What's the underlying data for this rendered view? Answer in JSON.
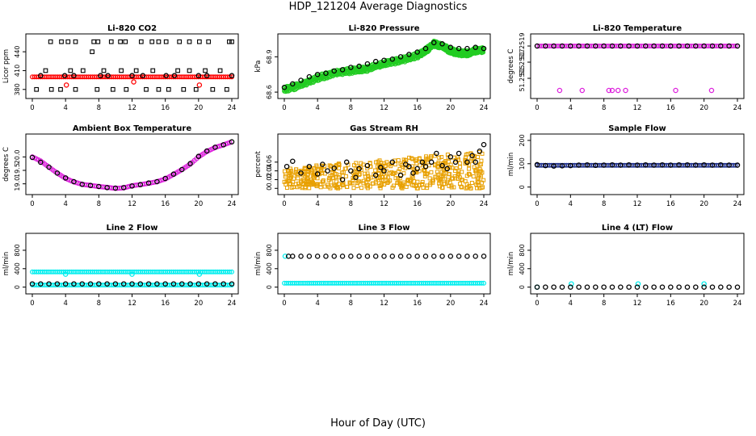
{
  "page": {
    "title": "HDP_121204  Average Diagnostics",
    "xlabel": "Hour of Day (UTC)"
  },
  "chart_data": [
    {
      "type": "scatter",
      "title": "Li-820 CO2",
      "ylabel": "Licor ppm",
      "xlim": [
        0,
        24
      ],
      "xticks": [
        0,
        4,
        8,
        12,
        16,
        20,
        24
      ],
      "ylim": [
        372,
        462
      ],
      "yticks": [
        380,
        410,
        440
      ],
      "grid": false,
      "series": [
        {
          "color": "#ff0000",
          "marker": "line-dense",
          "y": 400
        },
        {
          "color": "#ff0000",
          "marker": "o",
          "x": [
            4.1,
            12.2,
            20.1
          ],
          "y": [
            387,
            392,
            387
          ]
        },
        {
          "color": "#000000",
          "marker": "o",
          "x": [
            1.0,
            3.9,
            5.0,
            8.2,
            9.1,
            12.0,
            13.3,
            16.1,
            17.1,
            20.0,
            21.0,
            24.0
          ],
          "y": [
            402,
            402,
            402,
            402,
            402,
            402,
            402,
            402,
            402,
            402,
            402,
            402
          ]
        },
        {
          "color": "#000000",
          "marker": "square",
          "x": [
            0.5,
            1.6,
            2.3,
            3.4,
            4.6,
            5.2,
            6.1,
            7.2,
            7.8,
            8.6,
            9.7,
            10.7,
            11.3,
            12.5,
            13.7,
            14.5,
            15.2,
            16.4,
            17.5,
            18.2,
            18.9,
            19.7,
            20.8,
            21.7,
            22.6,
            23.4
          ],
          "y": [
            380,
            410,
            380,
            380,
            410,
            380,
            410,
            440,
            380,
            410,
            380,
            410,
            380,
            410,
            380,
            410,
            380,
            380,
            410,
            380,
            410,
            380,
            410,
            380,
            410,
            380
          ]
        },
        {
          "color": "#000000",
          "marker": "square",
          "x": [
            2.2,
            3.5,
            4.3,
            5.2,
            7.4,
            7.9,
            9.5,
            10.6,
            11.2,
            13.1,
            14.4,
            15.2,
            16.1,
            17.7,
            18.9,
            20.1,
            21.2,
            23.7,
            24.0
          ],
          "y": [
            456,
            456,
            456,
            456,
            456,
            456,
            456,
            456,
            456,
            456,
            456,
            456,
            456,
            456,
            456,
            456,
            456,
            456,
            456
          ]
        }
      ]
    },
    {
      "type": "scatter",
      "title": "Li-820 Pressure",
      "ylabel": "kPa",
      "xlim": [
        0,
        24
      ],
      "xticks": [
        0,
        4,
        8,
        12,
        16,
        20,
        24
      ],
      "ylim": [
        68.58,
        69.06
      ],
      "yticks": [
        68.6,
        68.9
      ],
      "grid": false,
      "series": [
        {
          "color": "#22cc22",
          "marker": "band",
          "x": [
            0,
            2,
            4,
            6,
            8,
            10,
            12,
            14,
            16,
            17,
            18,
            19,
            20,
            21,
            22,
            23,
            24
          ],
          "y": [
            68.62,
            68.66,
            68.72,
            68.76,
            68.78,
            68.8,
            68.84,
            68.87,
            68.91,
            68.95,
            69.01,
            68.99,
            68.95,
            68.93,
            68.93,
            68.95,
            68.96
          ]
        },
        {
          "color": "#000000",
          "marker": "o",
          "x": [
            0,
            1,
            2,
            3,
            4,
            5,
            6,
            7,
            8,
            9,
            10,
            11,
            12,
            13,
            14,
            15,
            16,
            17,
            18,
            19,
            20,
            21,
            22,
            23,
            24
          ],
          "y": [
            68.64,
            68.67,
            68.7,
            68.73,
            68.75,
            68.76,
            68.78,
            68.79,
            68.81,
            68.82,
            68.84,
            68.86,
            68.87,
            68.88,
            68.9,
            68.92,
            68.94,
            68.97,
            69.02,
            69.01,
            68.98,
            68.97,
            68.97,
            68.98,
            68.97
          ]
        }
      ]
    },
    {
      "type": "scatter",
      "title": "Li-820 Temperature",
      "ylabel": "degrees C",
      "xlim": [
        0,
        24
      ],
      "xticks": [
        0,
        4,
        8,
        12,
        16,
        20,
        24
      ],
      "ylim": [
        51.2513,
        51.252
      ],
      "yticks": [
        51.2515,
        51.2517,
        51.2519
      ],
      "grid": false,
      "series": [
        {
          "color": "#dd22dd",
          "marker": "line-dense",
          "y": 51.2519
        },
        {
          "color": "#dd22dd",
          "marker": "o",
          "x": [
            2.7,
            5.4,
            8.6,
            9.0,
            9.7,
            10.6,
            16.6,
            20.9
          ],
          "y": [
            51.25135,
            51.25135,
            51.25135,
            51.25135,
            51.25135,
            51.25135,
            51.25135,
            51.25135
          ]
        },
        {
          "color": "#000000",
          "marker": "o",
          "x": [
            0,
            1,
            2,
            3,
            4,
            5,
            6,
            7,
            8,
            9,
            10,
            11,
            12,
            13,
            14,
            15,
            16,
            17,
            18,
            19,
            20,
            21,
            22,
            23,
            24
          ],
          "y": [
            51.2519,
            51.2519,
            51.2519,
            51.2519,
            51.2519,
            51.2519,
            51.2519,
            51.2519,
            51.2519,
            51.2519,
            51.2519,
            51.2519,
            51.2519,
            51.2519,
            51.2519,
            51.2519,
            51.2519,
            51.2519,
            51.2519,
            51.2519,
            51.2519,
            51.2519,
            51.2519,
            51.2519,
            51.2519
          ]
        }
      ]
    },
    {
      "type": "scatter",
      "title": "Ambient Box Temperature",
      "ylabel": "degrees C",
      "xlim": [
        0,
        24
      ],
      "xticks": [
        0,
        4,
        8,
        12,
        16,
        20,
        24
      ],
      "ylim": [
        18.75,
        20.7
      ],
      "yticks": [
        19.0,
        19.5,
        20.0
      ],
      "grid": false,
      "series": [
        {
          "color": "#dd22dd",
          "marker": "curve",
          "x": [
            0,
            1,
            2,
            3,
            4,
            5,
            6,
            7,
            8,
            9,
            10,
            11,
            12,
            13,
            14,
            15,
            16,
            17,
            18,
            19,
            20,
            21,
            22,
            23,
            24
          ],
          "y": [
            20.0,
            19.85,
            19.62,
            19.4,
            19.2,
            19.07,
            18.98,
            18.94,
            18.9,
            18.87,
            18.83,
            18.85,
            18.93,
            18.97,
            19.02,
            19.08,
            19.18,
            19.35,
            19.53,
            19.73,
            20.0,
            20.2,
            20.35,
            20.45,
            20.56
          ]
        },
        {
          "color": "#000000",
          "marker": "o",
          "x": [
            0,
            1,
            2,
            3,
            4,
            5,
            6,
            7,
            8,
            9,
            10,
            11,
            12,
            13,
            14,
            15,
            16,
            17,
            18,
            19,
            20,
            21,
            22,
            23,
            24
          ],
          "y": [
            19.98,
            19.8,
            19.62,
            19.4,
            19.22,
            19.08,
            18.98,
            18.94,
            18.9,
            18.86,
            18.84,
            18.86,
            18.92,
            18.97,
            19.03,
            19.08,
            19.2,
            19.36,
            19.53,
            19.75,
            20.02,
            20.22,
            20.36,
            20.45,
            20.56
          ]
        }
      ]
    },
    {
      "type": "scatter",
      "title": "Gas Stream RH",
      "ylabel": "percent",
      "xlim": [
        0,
        24
      ],
      "xticks": [
        0,
        4,
        8,
        12,
        16,
        20,
        24
      ],
      "ylim": [
        -0.005,
        0.115
      ],
      "yticks": [
        0.0,
        0.02,
        0.04,
        0.06
      ],
      "grid": false,
      "series": [
        {
          "color": "#e8a000",
          "marker": "cloud",
          "y_low": 0.0,
          "y_high": 0.085
        },
        {
          "color": "#000000",
          "marker": "o",
          "x": [
            0.3,
            1.0,
            2.0,
            3.0,
            4.0,
            4.6,
            5.2,
            6.0,
            7.0,
            7.5,
            8.0,
            8.6,
            9.0,
            10.0,
            11.0,
            11.6,
            12.0,
            13.0,
            14.0,
            14.6,
            15.0,
            15.5,
            16.0,
            16.6,
            17.0,
            17.7,
            18.3,
            19.0,
            19.6,
            20.0,
            20.6,
            21.0,
            22.0,
            22.6,
            23.0,
            23.5,
            24.0
          ],
          "y": [
            0.05,
            0.062,
            0.035,
            0.05,
            0.033,
            0.055,
            0.04,
            0.046,
            0.02,
            0.06,
            0.04,
            0.025,
            0.045,
            0.052,
            0.03,
            0.048,
            0.04,
            0.06,
            0.03,
            0.055,
            0.05,
            0.035,
            0.045,
            0.06,
            0.05,
            0.06,
            0.08,
            0.052,
            0.045,
            0.072,
            0.06,
            0.08,
            0.06,
            0.075,
            0.06,
            0.085,
            0.1
          ]
        }
      ]
    },
    {
      "type": "scatter",
      "title": "Sample Flow",
      "ylabel": "ml/min",
      "xlim": [
        0,
        24
      ],
      "xticks": [
        0,
        4,
        8,
        12,
        16,
        20,
        24
      ],
      "ylim": [
        -15,
        210
      ],
      "yticks": [
        0,
        100,
        200
      ],
      "grid": false,
      "series": [
        {
          "color": "#22338f",
          "marker": "line-dense",
          "y": 93
        },
        {
          "color": "#000000",
          "marker": "o",
          "x": [
            0,
            1,
            2,
            3,
            4,
            5,
            6,
            7,
            8,
            9,
            10,
            11,
            12,
            13,
            14,
            15,
            16,
            17,
            18,
            19,
            20,
            21,
            22,
            23,
            24
          ],
          "y": [
            96,
            92,
            90,
            91,
            92,
            94,
            95,
            93,
            94,
            95,
            94,
            95,
            94,
            95,
            94,
            95,
            94,
            95,
            95,
            94,
            95,
            94,
            95,
            94,
            94
          ]
        }
      ]
    },
    {
      "type": "scatter",
      "title": "Line 2 Flow",
      "ylabel": "ml/min",
      "xlim": [
        0,
        24
      ],
      "xticks": [
        0,
        4,
        8,
        12,
        16,
        20,
        24
      ],
      "ylim": [
        -60,
        1080
      ],
      "yticks": [
        0,
        400,
        800
      ],
      "grid": false,
      "series": [
        {
          "color": "#00eeee",
          "marker": "line-dense",
          "y": 330
        },
        {
          "color": "#00eeee",
          "marker": "o",
          "x": [
            4.0,
            12.0,
            20.1
          ],
          "y": [
            280,
            280,
            280
          ]
        },
        {
          "color": "#00eeee",
          "marker": "line-dense",
          "y": 45
        },
        {
          "color": "#000000",
          "marker": "o",
          "x": [
            0,
            1,
            2,
            3,
            4,
            5,
            6,
            7,
            8,
            9,
            10,
            11,
            12,
            13,
            14,
            15,
            16,
            17,
            18,
            19,
            20,
            21,
            22,
            23,
            24
          ],
          "y": [
            70,
            70,
            70,
            70,
            70,
            70,
            70,
            70,
            70,
            70,
            70,
            70,
            70,
            70,
            70,
            70,
            70,
            70,
            70,
            70,
            70,
            70,
            70,
            70,
            70
          ]
        }
      ]
    },
    {
      "type": "scatter",
      "title": "Line 3 Flow",
      "ylabel": "ml/min",
      "xlim": [
        0,
        24
      ],
      "xticks": [
        0,
        4,
        8,
        12,
        16,
        20,
        24
      ],
      "ylim": [
        -60,
        1080
      ],
      "yticks": [
        0,
        400,
        800
      ],
      "grid": false,
      "series": [
        {
          "color": "#00eeee",
          "marker": "line-dense",
          "y": 85
        },
        {
          "color": "#00eeee",
          "marker": "o",
          "x": [
            0.1
          ],
          "y": [
            670
          ]
        },
        {
          "color": "#000000",
          "marker": "o",
          "x": [
            0.5,
            1.0,
            2.0,
            3.0,
            4.0,
            5.0,
            6.0,
            7.0,
            8.0,
            9.0,
            10.0,
            11.0,
            12.0,
            13.0,
            14.0,
            15.0,
            16.0,
            17.0,
            18.0,
            19.0,
            20.0,
            21.0,
            22.0,
            23.0,
            24.0
          ],
          "y": [
            670,
            670,
            670,
            670,
            670,
            670,
            670,
            670,
            670,
            670,
            670,
            670,
            670,
            670,
            670,
            670,
            670,
            670,
            670,
            670,
            670,
            670,
            670,
            670,
            670
          ]
        }
      ]
    },
    {
      "type": "scatter",
      "title": "Line 4 (LT) Flow",
      "ylabel": "ml/min",
      "xlim": [
        0,
        24
      ],
      "xticks": [
        0,
        4,
        8,
        12,
        16,
        20,
        24
      ],
      "ylim": [
        -60,
        1080
      ],
      "yticks": [
        0,
        400,
        800
      ],
      "grid": false,
      "series": [
        {
          "color": "#00eeee",
          "marker": "o",
          "x": [
            0.0,
            4.1,
            12.1,
            20.0
          ],
          "y": [
            0,
            70,
            70,
            70
          ]
        },
        {
          "color": "#000000",
          "marker": "o",
          "x": [
            0,
            1,
            2,
            3,
            4,
            5,
            6,
            7,
            8,
            9,
            10,
            11,
            12,
            13,
            14,
            15,
            16,
            17,
            18,
            19,
            20,
            21,
            22,
            23,
            24
          ],
          "y": [
            0,
            0,
            0,
            0,
            0,
            0,
            0,
            0,
            0,
            0,
            0,
            0,
            0,
            0,
            0,
            0,
            0,
            0,
            0,
            0,
            0,
            0,
            0,
            0,
            0
          ]
        }
      ]
    }
  ]
}
